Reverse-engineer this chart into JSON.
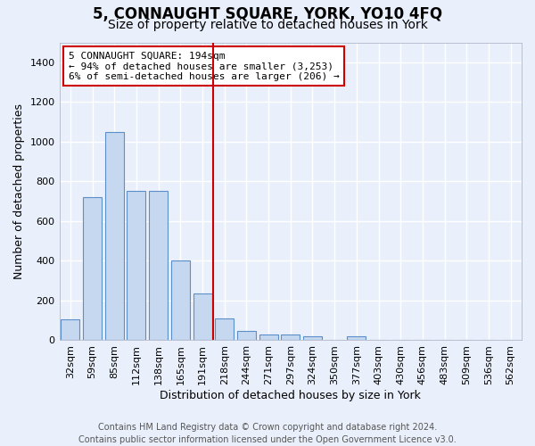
{
  "title": "5, CONNAUGHT SQUARE, YORK, YO10 4FQ",
  "subtitle": "Size of property relative to detached houses in York",
  "xlabel": "Distribution of detached houses by size in York",
  "ylabel": "Number of detached properties",
  "categories": [
    "32sqm",
    "59sqm",
    "85sqm",
    "112sqm",
    "138sqm",
    "165sqm",
    "191sqm",
    "218sqm",
    "244sqm",
    "271sqm",
    "297sqm",
    "324sqm",
    "350sqm",
    "377sqm",
    "403sqm",
    "430sqm",
    "456sqm",
    "483sqm",
    "509sqm",
    "536sqm",
    "562sqm"
  ],
  "bar_heights": [
    105,
    720,
    1050,
    750,
    750,
    400,
    235,
    110,
    45,
    28,
    28,
    22,
    0,
    18,
    0,
    0,
    0,
    0,
    0,
    0,
    0
  ],
  "bar_color": "#c5d8f0",
  "bar_edge_color": "#5b8fc9",
  "vline_x": 6.5,
  "vline_color": "#cc0000",
  "annotation_text": "5 CONNAUGHT SQUARE: 194sqm\n← 94% of detached houses are smaller (3,253)\n6% of semi-detached houses are larger (206) →",
  "annotation_box_color": "#ffffff",
  "annotation_box_edge_color": "#cc0000",
  "ylim": [
    0,
    1500
  ],
  "yticks": [
    0,
    200,
    400,
    600,
    800,
    1000,
    1200,
    1400
  ],
  "footer": "Contains HM Land Registry data © Crown copyright and database right 2024.\nContains public sector information licensed under the Open Government Licence v3.0.",
  "bg_color": "#eaf0fb",
  "grid_color": "#ffffff",
  "title_fontsize": 12,
  "subtitle_fontsize": 10,
  "label_fontsize": 9,
  "tick_fontsize": 8,
  "footer_fontsize": 7,
  "annotation_fontsize": 8
}
